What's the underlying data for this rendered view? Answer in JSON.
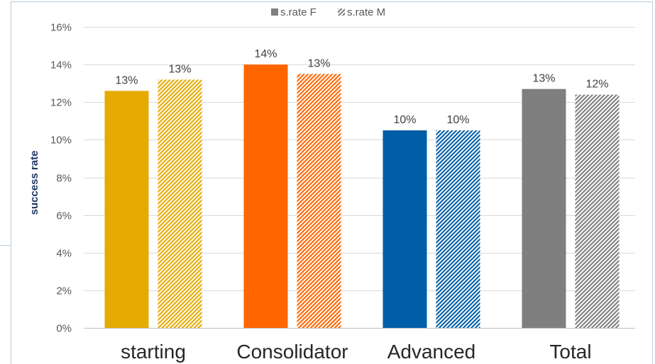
{
  "chart_data": {
    "type": "bar",
    "ylabel": "success rate",
    "ylim": [
      0,
      16
    ],
    "ytick_values": [
      0,
      2,
      4,
      6,
      8,
      10,
      12,
      14,
      16
    ],
    "ytick_labels": [
      "0%",
      "2%",
      "4%",
      "6%",
      "8%",
      "10%",
      "12%",
      "14%",
      "16%"
    ],
    "grid": true,
    "legend_position": "top",
    "categories": [
      "starting",
      "Consolidator",
      "Advanced",
      "Total"
    ],
    "category_colors": [
      "#E5AB00",
      "#FF6600",
      "#005EA8",
      "#7F7F7F"
    ],
    "legend_color": "#7F7F7F",
    "series": [
      {
        "name": "s.rate F",
        "fill": "solid",
        "values": [
          12.6,
          14.0,
          10.5,
          12.7
        ],
        "labels": [
          "13%",
          "14%",
          "10%",
          "13%"
        ]
      },
      {
        "name": "s.rate M",
        "fill": "hatched",
        "values": [
          13.2,
          13.5,
          10.5,
          12.4
        ],
        "labels": [
          "13%",
          "13%",
          "10%",
          "12%"
        ]
      }
    ]
  }
}
